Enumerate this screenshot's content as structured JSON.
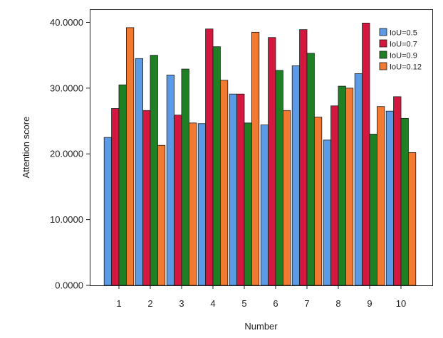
{
  "chart_data": {
    "type": "bar",
    "title": "",
    "xlabel": "Number",
    "ylabel": "Attention score",
    "categories": [
      "1",
      "2",
      "3",
      "4",
      "5",
      "6",
      "7",
      "8",
      "9",
      "10"
    ],
    "ylim": [
      0,
      42
    ],
    "yticks": [
      "0.0000",
      "10.0000",
      "20.0000",
      "30.0000",
      "40.0000"
    ],
    "ytick_values": [
      0,
      10,
      20,
      30,
      40
    ],
    "grid": false,
    "legend_position": "top-right",
    "series": [
      {
        "name": "IoU=0.5",
        "color": "#5b9ae6",
        "values": [
          22.5,
          34.5,
          32.0,
          24.6,
          29.1,
          24.4,
          33.4,
          22.1,
          32.2,
          26.5
        ]
      },
      {
        "name": "IoU=0.7",
        "color": "#d5173f",
        "values": [
          26.9,
          26.6,
          25.9,
          39.0,
          29.1,
          37.7,
          38.9,
          27.3,
          39.9,
          28.7
        ]
      },
      {
        "name": "IoU=0.9",
        "color": "#1e7f24",
        "values": [
          30.5,
          35.0,
          32.9,
          36.3,
          24.7,
          32.7,
          35.3,
          30.3,
          23.0,
          25.4
        ]
      },
      {
        "name": "IoU=0.12",
        "color": "#f07a31",
        "values": [
          39.2,
          21.3,
          24.7,
          31.2,
          38.5,
          26.6,
          25.6,
          30.0,
          27.2,
          20.2
        ]
      }
    ]
  }
}
